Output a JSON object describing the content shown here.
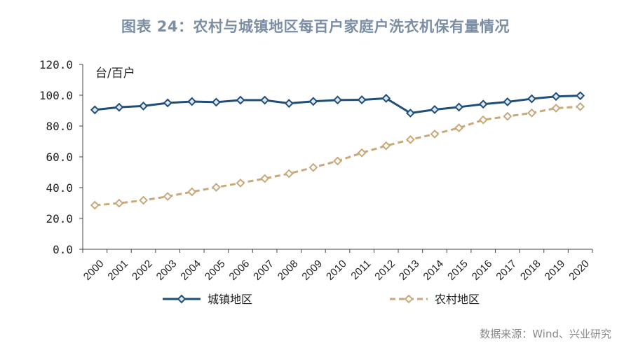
{
  "title": "图表 24：农村与城镇地区每百户家庭户洗衣机保有量情况",
  "source": "数据来源：Wind、兴业研究",
  "chart_data": {
    "type": "line",
    "unit_label": "台/百户",
    "categories": [
      "2000",
      "2001",
      "2002",
      "2003",
      "2004",
      "2005",
      "2006",
      "2007",
      "2008",
      "2009",
      "2010",
      "2011",
      "2012",
      "2013",
      "2014",
      "2015",
      "2016",
      "2017",
      "2018",
      "2019",
      "2020"
    ],
    "series": [
      {
        "name": "城镇地区",
        "color": "#1f4e79",
        "style": "solid",
        "marker": "diamond",
        "values": [
          90.5,
          92.2,
          93.0,
          95.0,
          95.9,
          95.5,
          96.8,
          96.8,
          94.7,
          96.0,
          96.9,
          97.0,
          98.0,
          88.4,
          90.7,
          92.3,
          94.2,
          95.7,
          97.7,
          99.2,
          99.7
        ]
      },
      {
        "name": "农村地区",
        "color": "#c9a97a",
        "style": "dashed",
        "marker": "diamond",
        "values": [
          28.6,
          29.9,
          31.8,
          34.3,
          37.3,
          40.2,
          43.0,
          45.9,
          49.1,
          53.1,
          57.3,
          62.6,
          67.2,
          71.2,
          74.8,
          78.8,
          84.0,
          86.3,
          88.5,
          91.6,
          92.6
        ]
      }
    ],
    "ylim": [
      0,
      120
    ],
    "yticks": [
      "0.0",
      "20.0",
      "40.0",
      "60.0",
      "80.0",
      "100.0",
      "120.0"
    ],
    "grid": false,
    "legend_position": "bottom"
  }
}
